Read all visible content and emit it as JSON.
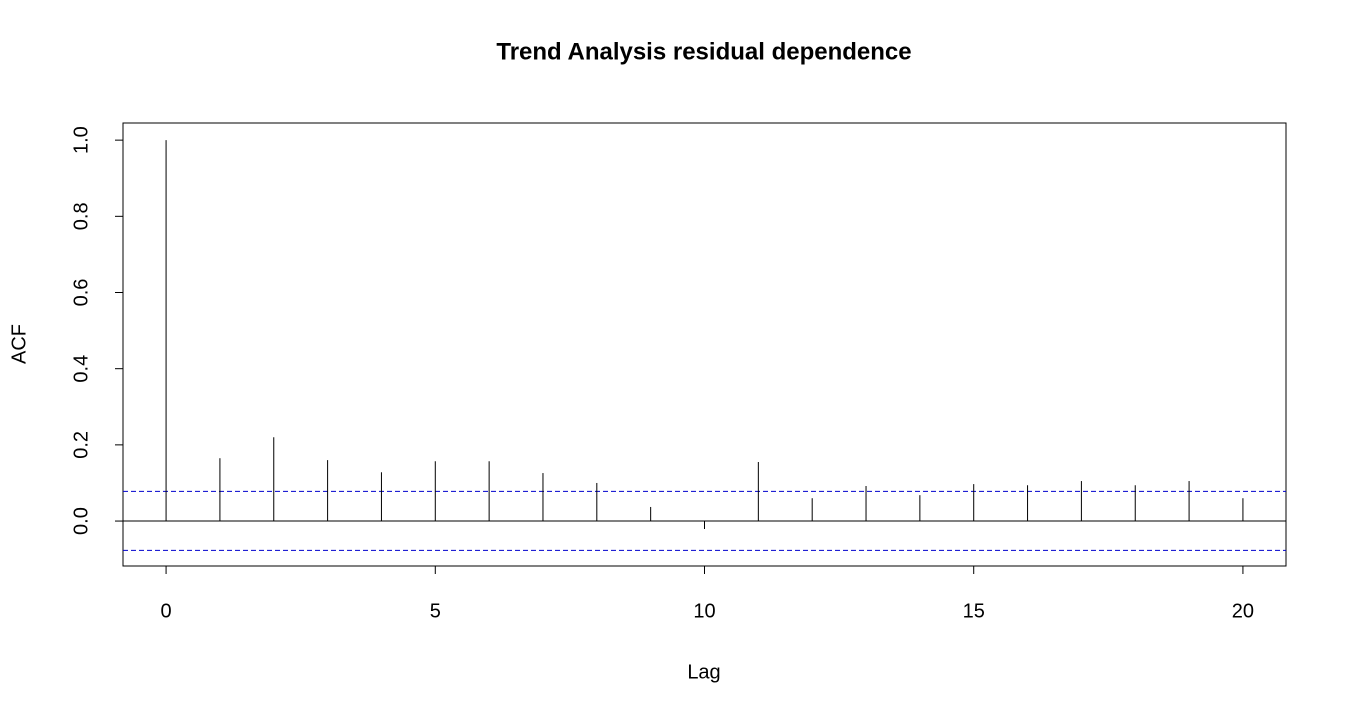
{
  "chart_data": {
    "type": "acf",
    "title": "Trend Analysis residual dependence",
    "x_label": "Lag",
    "y_label": "ACF",
    "x": [
      0,
      1,
      2,
      3,
      4,
      5,
      6,
      7,
      8,
      9,
      10,
      11,
      12,
      13,
      14,
      15,
      16,
      17,
      18,
      19,
      20
    ],
    "values": [
      1.0,
      0.165,
      0.22,
      0.16,
      0.128,
      0.157,
      0.157,
      0.126,
      0.1,
      0.037,
      -0.021,
      0.155,
      0.06,
      0.092,
      0.068,
      0.097,
      0.094,
      0.105,
      0.094,
      0.105,
      0.06
    ],
    "color": "#000000",
    "ci_bounds": [
      -0.077,
      0.078
    ],
    "ci_color": "#0000cd",
    "xlim": [
      -0.8,
      20.8
    ],
    "ylim": [
      -0.118,
      1.045
    ],
    "xticks": [
      0,
      5,
      10,
      15,
      20
    ],
    "yticks": [
      {
        "value": 0,
        "label": "0.0"
      },
      0.2,
      0.4,
      0.6,
      0.8,
      {
        "value": 1,
        "label": "1.0"
      }
    ]
  }
}
